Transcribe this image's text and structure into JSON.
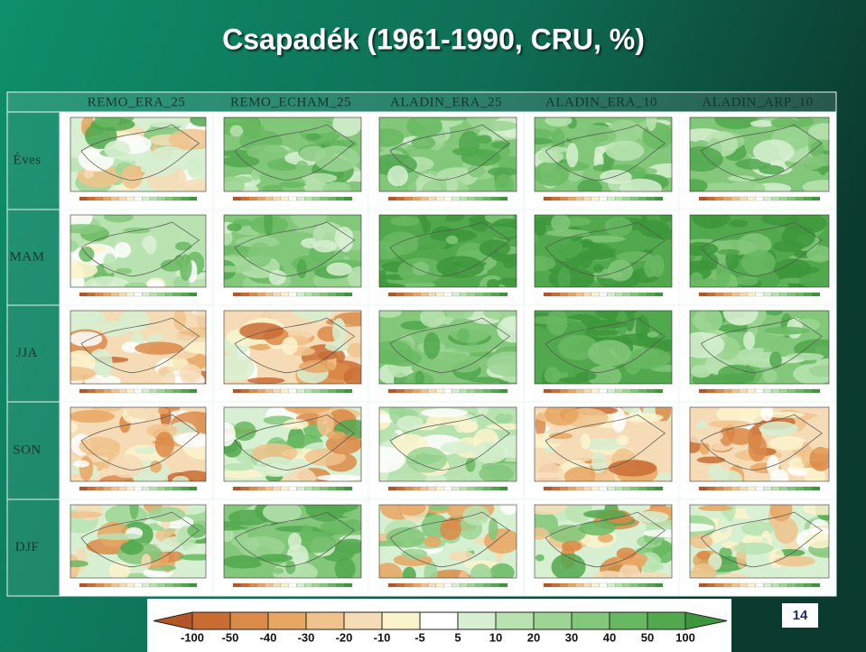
{
  "title": "Csapadék (1961-1990, CRU, %)",
  "columns": [
    "REMO_ERA_25",
    "REMO_ECHAM_25",
    "ALADIN_ERA_25",
    "ALADIN_ERA_10",
    "ALADIN_ARP_10"
  ],
  "rows": [
    "Éves",
    "MAM",
    "JJA",
    "SON",
    "DJF"
  ],
  "colorbar": {
    "labels": [
      -100,
      -50,
      -40,
      -30,
      -20,
      -10,
      -5,
      5,
      10,
      20,
      30,
      40,
      50,
      100
    ],
    "colors": [
      "#b35526",
      "#c96c34",
      "#dc8a48",
      "#e8a663",
      "#f0c38c",
      "#f6dcb6",
      "#fbf3cc",
      "#ffffff",
      "#d7f0d1",
      "#b8e3b0",
      "#9cd594",
      "#82c77a",
      "#68b862",
      "#51a84d",
      "#3d963b"
    ]
  },
  "page_number": "14"
}
